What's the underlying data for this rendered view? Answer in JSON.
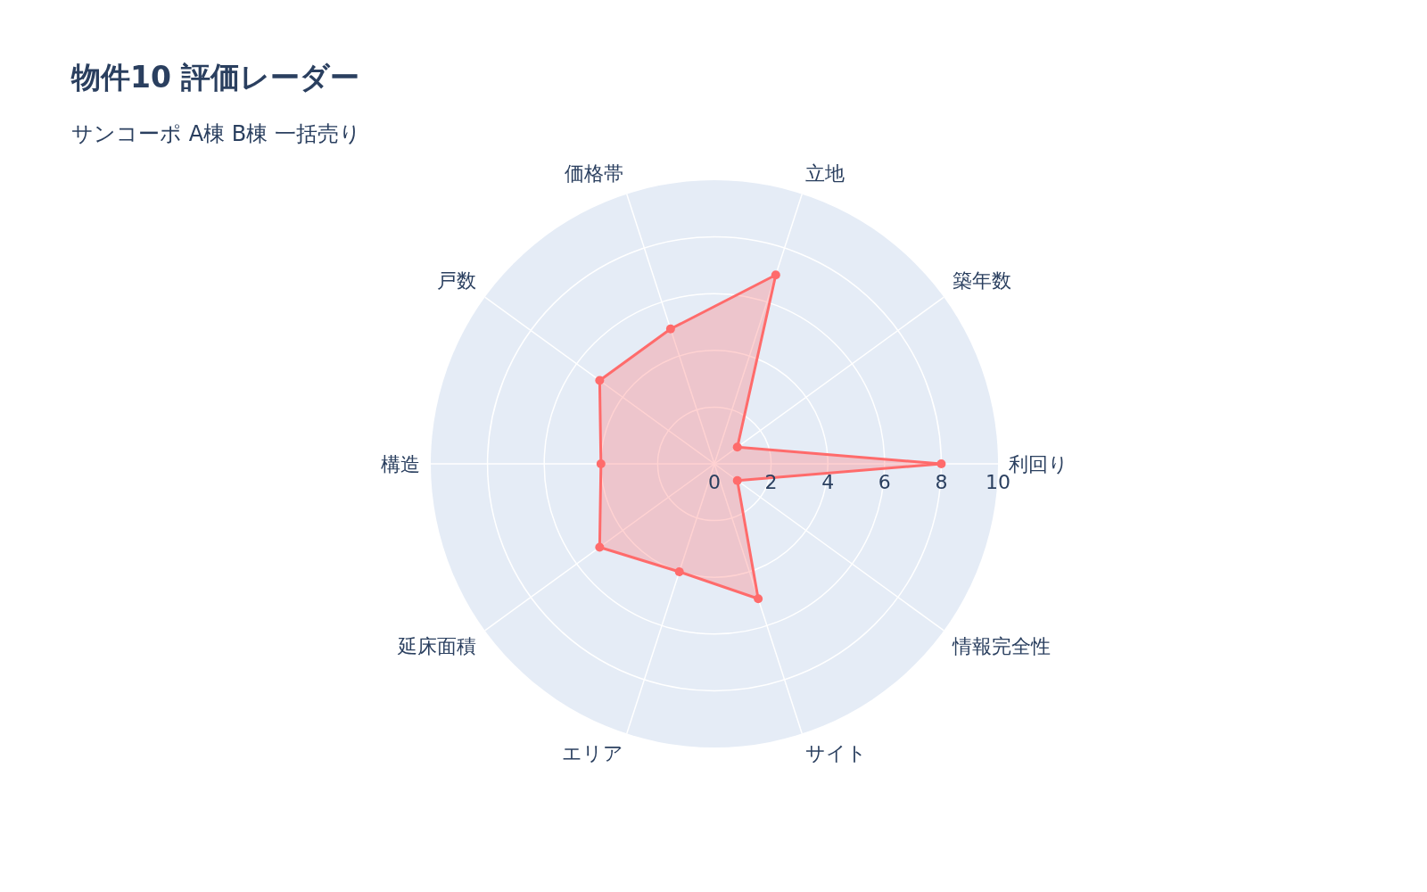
{
  "chart_data": {
    "type": "radar",
    "title": "物件10 評価レーダー",
    "subtitle": "サンコーポ A棟 B棟 一括売り",
    "categories": [
      "立地",
      "築年数",
      "利回り",
      "情報完全性",
      "サイト",
      "エリア",
      "延床面積",
      "構造",
      "戸数",
      "価格帯"
    ],
    "series": [
      {
        "color": "#ff6b6b",
        "values": [
          7,
          1,
          8,
          1,
          5,
          4,
          5,
          4,
          5,
          5
        ]
      }
    ],
    "ylim": [
      0,
      10
    ],
    "yticks": [
      0,
      2,
      4,
      6,
      8,
      10
    ],
    "marker": "circle",
    "grid": true
  }
}
